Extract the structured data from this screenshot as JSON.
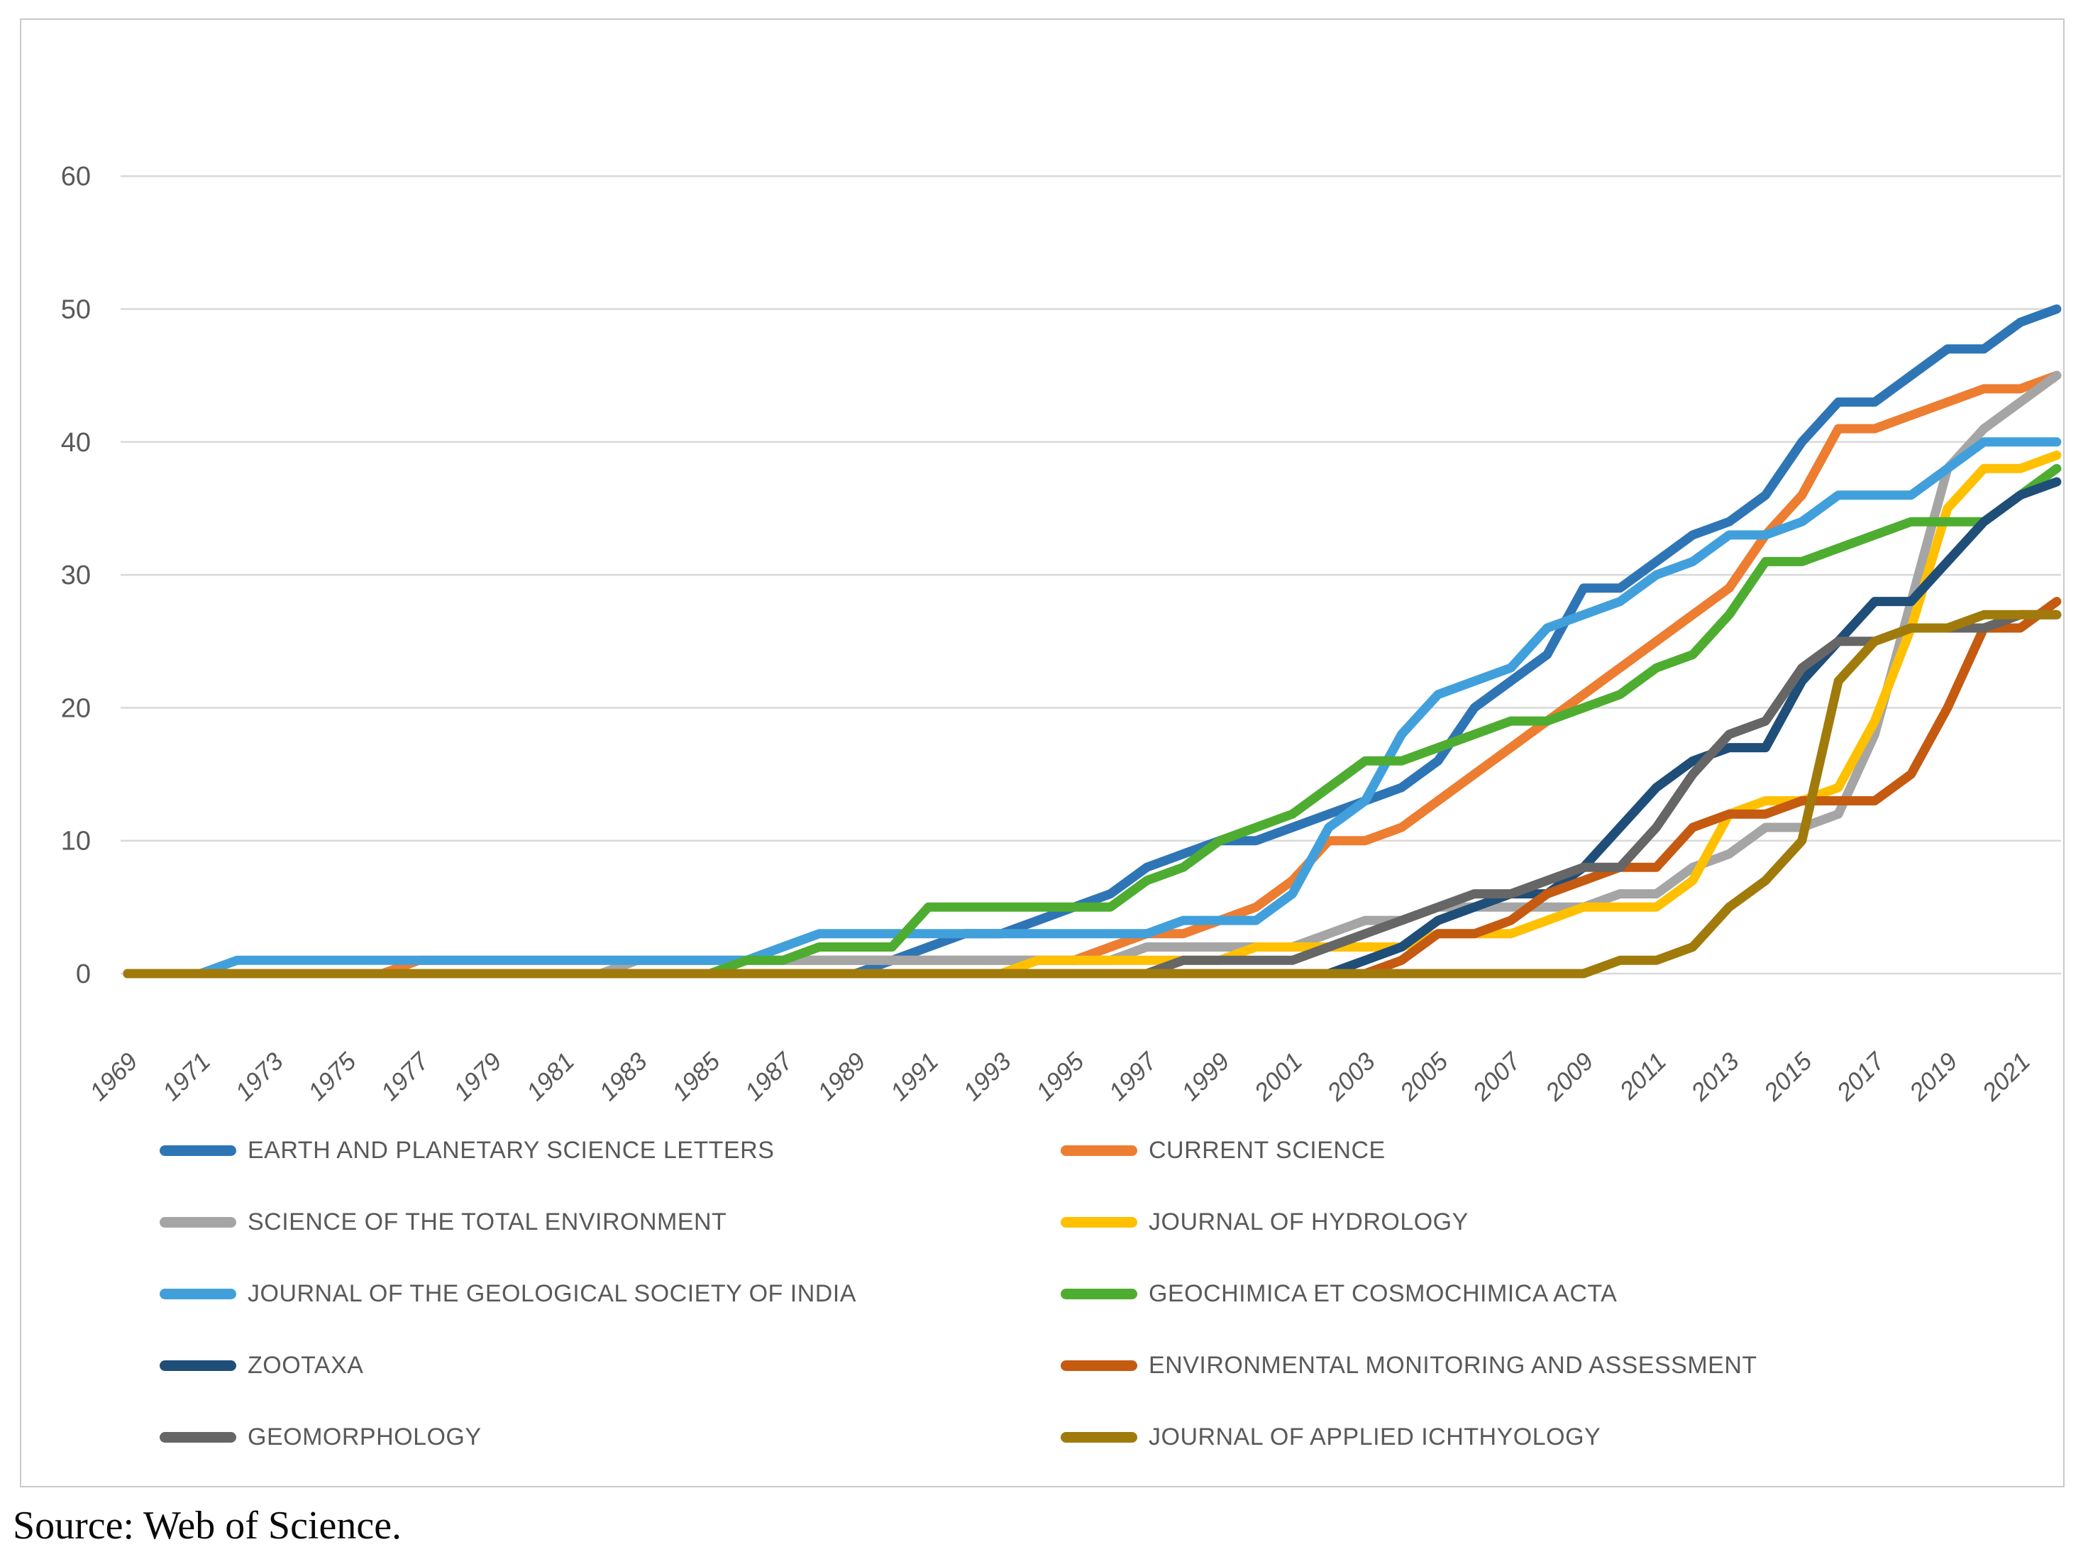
{
  "figure": {
    "source_note": "Source: Web of Science."
  },
  "chart_data": {
    "type": "line",
    "title": "",
    "xlabel": "",
    "ylabel": "",
    "ylim": [
      0,
      60
    ],
    "y_ticks": [
      0,
      10,
      20,
      30,
      40,
      50,
      60
    ],
    "grid": true,
    "legend_position": "bottom",
    "tick_color": "#595959",
    "grid_color": "#D9D9D9",
    "x": [
      1969,
      1970,
      1971,
      1972,
      1973,
      1974,
      1975,
      1976,
      1977,
      1978,
      1979,
      1980,
      1981,
      1982,
      1983,
      1984,
      1985,
      1986,
      1987,
      1988,
      1989,
      1990,
      1991,
      1992,
      1993,
      1994,
      1995,
      1996,
      1997,
      1998,
      1999,
      2000,
      2001,
      2002,
      2003,
      2004,
      2005,
      2006,
      2007,
      2008,
      2009,
      2010,
      2011,
      2012,
      2013,
      2014,
      2015,
      2016,
      2017,
      2018,
      2019,
      2020,
      2021,
      2022
    ],
    "x_tick_labels": [
      "1969",
      "1971",
      "1973",
      "1975",
      "1977",
      "1979",
      "1981",
      "1983",
      "1985",
      "1987",
      "1989",
      "1991",
      "1993",
      "1995",
      "1997",
      "1999",
      "2001",
      "2003",
      "2005",
      "2007",
      "2009",
      "2011",
      "2013",
      "2015",
      "2017",
      "2019",
      "2021"
    ],
    "series": [
      {
        "name": "EARTH AND PLANETARY SCIENCE LETTERS",
        "color": "#2E75B6",
        "values": [
          0,
          0,
          0,
          0,
          0,
          0,
          0,
          0,
          0,
          0,
          0,
          0,
          0,
          0,
          0,
          0,
          0,
          0,
          0,
          0,
          0,
          1,
          2,
          3,
          3,
          4,
          5,
          6,
          8,
          9,
          10,
          10,
          11,
          12,
          13,
          14,
          16,
          20,
          22,
          24,
          29,
          29,
          31,
          33,
          34,
          36,
          40,
          43,
          43,
          45,
          47,
          47,
          49,
          50
        ]
      },
      {
        "name": "CURRENT SCIENCE",
        "color": "#ED7D31",
        "values": [
          0,
          0,
          0,
          0,
          0,
          0,
          0,
          0,
          1,
          1,
          1,
          1,
          1,
          1,
          1,
          1,
          1,
          1,
          1,
          1,
          1,
          1,
          1,
          1,
          1,
          1,
          1,
          2,
          3,
          3,
          4,
          5,
          7,
          10,
          10,
          11,
          13,
          15,
          17,
          19,
          21,
          23,
          25,
          27,
          29,
          33,
          36,
          41,
          41,
          42,
          43,
          44,
          44,
          45
        ]
      },
      {
        "name": "SCIENCE OF THE TOTAL ENVIRONMENT",
        "color": "#A5A5A5",
        "values": [
          0,
          0,
          0,
          0,
          0,
          0,
          0,
          0,
          0,
          0,
          0,
          0,
          0,
          0,
          1,
          1,
          1,
          1,
          1,
          1,
          1,
          1,
          1,
          1,
          1,
          1,
          1,
          1,
          2,
          2,
          2,
          2,
          2,
          3,
          4,
          4,
          5,
          5,
          5,
          5,
          5,
          6,
          6,
          8,
          9,
          11,
          11,
          12,
          18,
          28,
          38,
          41,
          43,
          45
        ]
      },
      {
        "name": "JOURNAL OF HYDROLOGY",
        "color": "#FFC000",
        "values": [
          0,
          0,
          0,
          0,
          0,
          0,
          0,
          0,
          0,
          0,
          0,
          0,
          0,
          0,
          0,
          0,
          0,
          0,
          0,
          0,
          0,
          0,
          0,
          0,
          0,
          1,
          1,
          1,
          1,
          1,
          1,
          2,
          2,
          2,
          2,
          2,
          3,
          3,
          3,
          4,
          5,
          5,
          5,
          7,
          12,
          13,
          13,
          14,
          19,
          26,
          35,
          38,
          38,
          39
        ]
      },
      {
        "name": "JOURNAL OF THE GEOLOGICAL SOCIETY OF INDIA",
        "color": "#41A0DC",
        "values": [
          0,
          0,
          0,
          1,
          1,
          1,
          1,
          1,
          1,
          1,
          1,
          1,
          1,
          1,
          1,
          1,
          1,
          1,
          2,
          3,
          3,
          3,
          3,
          3,
          3,
          3,
          3,
          3,
          3,
          4,
          4,
          4,
          6,
          11,
          13,
          18,
          21,
          22,
          23,
          26,
          27,
          28,
          30,
          31,
          33,
          33,
          34,
          36,
          36,
          36,
          38,
          40,
          40,
          40
        ]
      },
      {
        "name": "GEOCHIMICA ET COSMOCHIMICA ACTA",
        "color": "#4EAD30",
        "values": [
          0,
          0,
          0,
          0,
          0,
          0,
          0,
          0,
          0,
          0,
          0,
          0,
          0,
          0,
          0,
          0,
          0,
          1,
          1,
          2,
          2,
          2,
          5,
          5,
          5,
          5,
          5,
          5,
          7,
          8,
          10,
          11,
          12,
          14,
          16,
          16,
          17,
          18,
          19,
          19,
          20,
          21,
          23,
          24,
          27,
          31,
          31,
          32,
          33,
          34,
          34,
          34,
          36,
          38
        ]
      },
      {
        "name": "ZOOTAXA",
        "color": "#1F4E79",
        "values": [
          0,
          0,
          0,
          0,
          0,
          0,
          0,
          0,
          0,
          0,
          0,
          0,
          0,
          0,
          0,
          0,
          0,
          0,
          0,
          0,
          0,
          0,
          0,
          0,
          0,
          0,
          0,
          0,
          0,
          0,
          0,
          0,
          0,
          0,
          1,
          2,
          4,
          5,
          6,
          6,
          8,
          11,
          14,
          16,
          17,
          17,
          22,
          25,
          28,
          28,
          31,
          34,
          36,
          37
        ]
      },
      {
        "name": "ENVIRONMENTAL MONITORING AND ASSESSMENT",
        "color": "#C55A11",
        "values": [
          0,
          0,
          0,
          0,
          0,
          0,
          0,
          0,
          0,
          0,
          0,
          0,
          0,
          0,
          0,
          0,
          0,
          0,
          0,
          0,
          0,
          0,
          0,
          0,
          0,
          0,
          0,
          0,
          0,
          0,
          0,
          0,
          0,
          0,
          0,
          1,
          3,
          3,
          4,
          6,
          7,
          8,
          8,
          11,
          12,
          12,
          13,
          13,
          13,
          15,
          20,
          26,
          26,
          28
        ]
      },
      {
        "name": "GEOMORPHOLOGY",
        "color": "#666666",
        "values": [
          0,
          0,
          0,
          0,
          0,
          0,
          0,
          0,
          0,
          0,
          0,
          0,
          0,
          0,
          0,
          0,
          0,
          0,
          0,
          0,
          0,
          0,
          0,
          0,
          0,
          0,
          0,
          0,
          0,
          1,
          1,
          1,
          1,
          2,
          3,
          4,
          5,
          6,
          6,
          7,
          8,
          8,
          11,
          15,
          18,
          19,
          23,
          25,
          25,
          26,
          26,
          26,
          27,
          27
        ]
      },
      {
        "name": "JOURNAL OF APPLIED ICHTHYOLOGY",
        "color": "#A07B0B",
        "values": [
          0,
          0,
          0,
          0,
          0,
          0,
          0,
          0,
          0,
          0,
          0,
          0,
          0,
          0,
          0,
          0,
          0,
          0,
          0,
          0,
          0,
          0,
          0,
          0,
          0,
          0,
          0,
          0,
          0,
          0,
          0,
          0,
          0,
          0,
          0,
          0,
          0,
          0,
          0,
          0,
          0,
          1,
          1,
          2,
          5,
          7,
          10,
          22,
          25,
          26,
          26,
          27,
          27,
          27
        ]
      }
    ]
  }
}
